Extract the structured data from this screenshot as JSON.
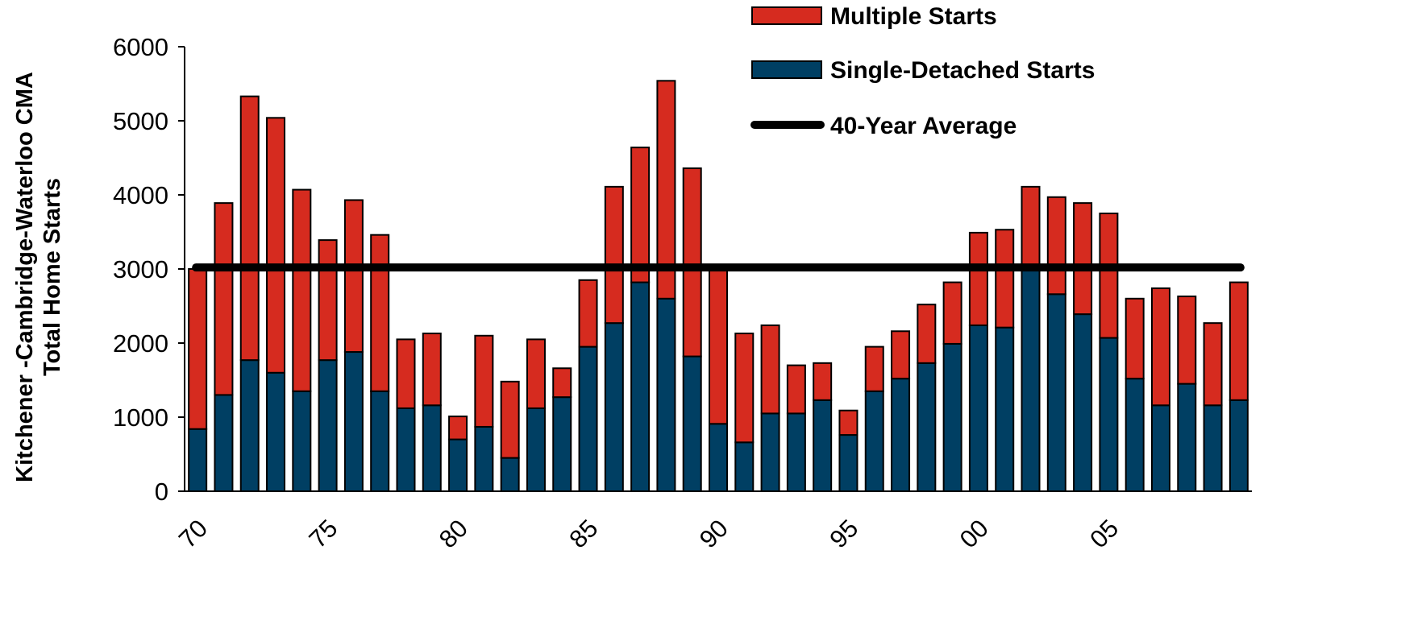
{
  "chart_data": {
    "type": "stacked-bar",
    "y_label": [
      "Kitchener -Cambridge-Waterloo CMA",
      "Total Home Starts"
    ],
    "categories": [
      "70",
      null,
      null,
      null,
      null,
      "75",
      null,
      null,
      null,
      null,
      "80",
      null,
      null,
      null,
      null,
      "85",
      null,
      null,
      null,
      null,
      "90",
      null,
      null,
      null,
      null,
      "95",
      null,
      null,
      null,
      null,
      "00",
      null,
      null,
      null,
      null,
      "05",
      null,
      null,
      null,
      null,
      null
    ],
    "series": [
      {
        "name": "Single-Detached Starts",
        "color": "#003f63",
        "values": [
          840,
          1300,
          1770,
          1600,
          1350,
          1770,
          1880,
          1350,
          1120,
          1160,
          700,
          870,
          450,
          1120,
          1270,
          1950,
          2270,
          2820,
          2600,
          1820,
          910,
          660,
          1050,
          1050,
          1230,
          760,
          1350,
          1520,
          1730,
          1990,
          2240,
          2210,
          2990,
          2660,
          2390,
          2070,
          1520,
          1160,
          1450,
          1160,
          1230
        ]
      },
      {
        "name": "Multiple Starts",
        "color": "#d62b1f",
        "values": [
          2160,
          2590,
          3560,
          3440,
          2720,
          1620,
          2050,
          2110,
          930,
          970,
          310,
          1230,
          1030,
          930,
          390,
          900,
          1840,
          1820,
          2940,
          2540,
          2070,
          1470,
          1190,
          650,
          500,
          330,
          600,
          640,
          790,
          830,
          1250,
          1320,
          1120,
          1310,
          1500,
          1680,
          1080,
          1580,
          1180,
          1110,
          1590
        ]
      }
    ],
    "average": {
      "name": "40-Year Average",
      "value": 3020,
      "color": "#000000"
    },
    "ylim": [
      0,
      6000
    ],
    "yticks": [
      0,
      1000,
      2000,
      3000,
      4000,
      5000,
      6000
    ]
  }
}
